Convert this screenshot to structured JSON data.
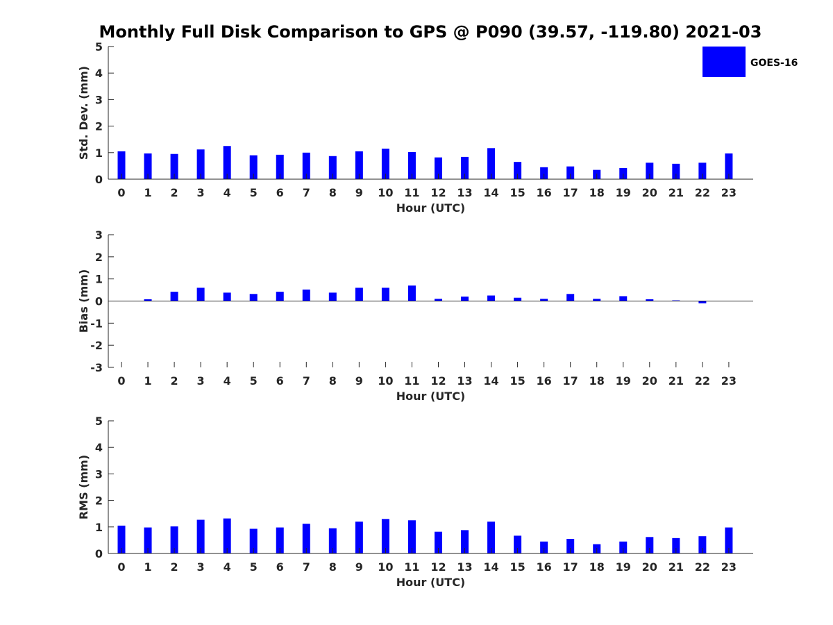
{
  "chart_data": {
    "type": "bar",
    "title": "Monthly Full Disk Comparison to GPS @ P090 (39.57, -119.80) 2021-03",
    "legend": {
      "placement": "top-right",
      "entries": [
        "GOES-16"
      ]
    },
    "series_color": "#0000FF",
    "categories": [
      "0",
      "1",
      "2",
      "3",
      "4",
      "5",
      "6",
      "7",
      "8",
      "9",
      "10",
      "11",
      "12",
      "13",
      "14",
      "15",
      "16",
      "17",
      "18",
      "19",
      "20",
      "21",
      "22",
      "23"
    ],
    "panels": [
      {
        "ylabel": "Std. Dev. (mm)",
        "xlabel": "Hour (UTC)",
        "ylim": [
          0,
          5
        ],
        "yticks": [
          "0",
          "1",
          "2",
          "3",
          "4",
          "5"
        ],
        "series": [
          {
            "name": "GOES-16",
            "values": [
              1.05,
              0.97,
              0.95,
              1.12,
              1.25,
              0.9,
              0.92,
              1.0,
              0.87,
              1.05,
              1.15,
              1.02,
              0.82,
              0.84,
              1.17,
              0.65,
              0.45,
              0.48,
              0.35,
              0.42,
              0.62,
              0.58,
              0.62,
              0.97
            ]
          }
        ]
      },
      {
        "ylabel": "Bias (mm)",
        "xlabel": "Hour (UTC)",
        "ylim": [
          -3,
          3
        ],
        "yticks": [
          "-3",
          "-2",
          "-1",
          "0",
          "1",
          "2",
          "3"
        ],
        "series": [
          {
            "name": "GOES-16",
            "values": [
              0.0,
              0.08,
              0.42,
              0.6,
              0.38,
              0.32,
              0.42,
              0.52,
              0.38,
              0.6,
              0.6,
              0.7,
              0.1,
              0.2,
              0.25,
              0.15,
              0.1,
              0.32,
              0.1,
              0.22,
              0.08,
              0.03,
              -0.1,
              0.0
            ]
          }
        ]
      },
      {
        "ylabel": "RMS (mm)",
        "xlabel": "Hour (UTC)",
        "ylim": [
          0,
          5
        ],
        "yticks": [
          "0",
          "1",
          "2",
          "3",
          "4",
          "5"
        ],
        "series": [
          {
            "name": "GOES-16",
            "values": [
              1.05,
              0.98,
              1.02,
              1.27,
              1.32,
              0.93,
              0.98,
              1.12,
              0.95,
              1.2,
              1.3,
              1.25,
              0.82,
              0.88,
              1.2,
              0.67,
              0.45,
              0.55,
              0.35,
              0.45,
              0.62,
              0.58,
              0.65,
              0.98
            ]
          }
        ]
      }
    ]
  }
}
